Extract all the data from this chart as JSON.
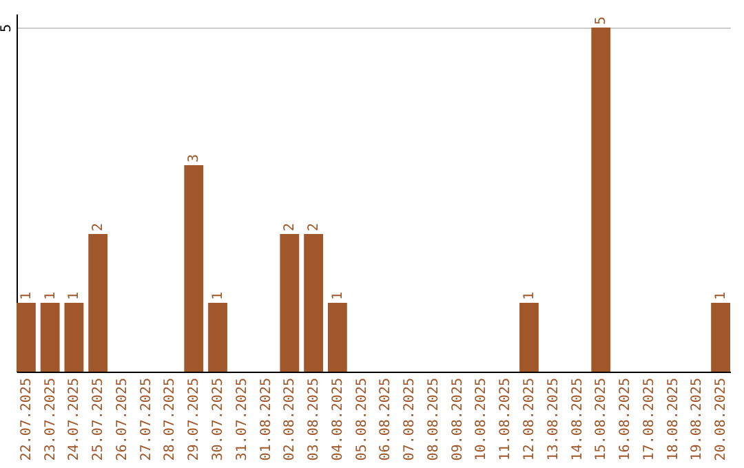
{
  "chart_data": {
    "type": "bar",
    "categories": [
      "22.07.2025",
      "23.07.2025",
      "24.07.2025",
      "25.07.2025",
      "26.07.2025",
      "27.07.2025",
      "28.07.2025",
      "29.07.2025",
      "30.07.2025",
      "31.07.2025",
      "01.08.2025",
      "02.08.2025",
      "03.08.2025",
      "04.08.2025",
      "05.08.2025",
      "06.08.2025",
      "07.08.2025",
      "08.08.2025",
      "09.08.2025",
      "10.08.2025",
      "11.08.2025",
      "12.08.2025",
      "13.08.2025",
      "14.08.2025",
      "15.08.2025",
      "16.08.2025",
      "17.08.2025",
      "18.08.2025",
      "19.08.2025",
      "20.08.2025"
    ],
    "values": [
      1,
      1,
      1,
      2,
      0,
      0,
      0,
      3,
      1,
      0,
      0,
      2,
      2,
      1,
      0,
      0,
      0,
      0,
      0,
      0,
      0,
      1,
      0,
      0,
      5,
      0,
      0,
      0,
      0,
      1
    ],
    "value_labels": [
      "1",
      "1",
      "1",
      "2",
      null,
      null,
      null,
      "3",
      "1",
      null,
      null,
      "2",
      "2",
      "1",
      null,
      null,
      null,
      null,
      null,
      null,
      null,
      "1",
      null,
      null,
      "5",
      null,
      null,
      null,
      null,
      "1"
    ],
    "color": "#a0572a",
    "ylim": [
      0,
      5.2
    ],
    "yticks": [
      5
    ],
    "grid": "y"
  }
}
